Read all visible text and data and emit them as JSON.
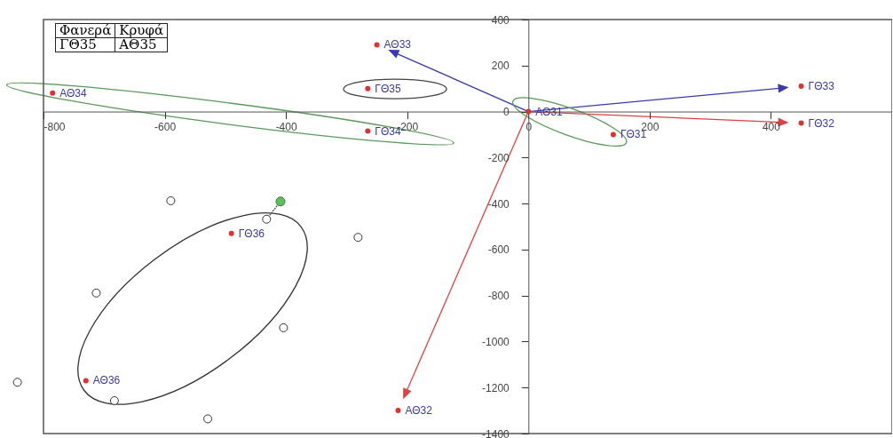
{
  "chart_data": {
    "type": "scatter",
    "marker": "circle",
    "grid": false,
    "xlim": [
      -800,
      600
    ],
    "ylim": [
      -1400,
      400
    ],
    "xticks": [
      -800,
      -600,
      -400,
      -200,
      0,
      200,
      400
    ],
    "yticks": [
      -1400,
      -1200,
      -1000,
      -800,
      -600,
      -400,
      -200,
      0,
      200,
      400
    ],
    "series": [
      {
        "color": "#e03030",
        "x": [
          -250,
          -785,
          -265,
          -265,
          0,
          140,
          450,
          450,
          -490,
          -730,
          -215
        ],
        "values": [
          290,
          80,
          100,
          -85,
          0,
          -100,
          110,
          -50,
          -530,
          -1170,
          -1300
        ]
      }
    ],
    "annotations": [
      "Φανερά",
      "Κρυφά",
      "ΓΘ35",
      "ΑΘ35",
      {
        "text": "ΑΘ33",
        "x": -250,
        "y": 290
      },
      {
        "text": "ΑΘ34",
        "x": -785,
        "y": 80
      },
      {
        "text": "ΓΘ35",
        "x": -265,
        "y": 100
      },
      {
        "text": "ΓΘ34",
        "x": -265,
        "y": -85
      },
      {
        "text": "ΑΘ31",
        "x": 0,
        "y": 0
      },
      {
        "text": "ΓΘ31",
        "x": 140,
        "y": -100
      },
      {
        "text": "ΓΘ33",
        "x": 450,
        "y": 110
      },
      {
        "text": "ΓΘ32",
        "x": 450,
        "y": -50
      },
      {
        "text": "ΓΘ36",
        "x": -490,
        "y": -530
      },
      {
        "text": "ΑΘ36",
        "x": -730,
        "y": -1170
      },
      {
        "text": "ΑΘ32",
        "x": -215,
        "y": -1300
      }
    ]
  }
}
